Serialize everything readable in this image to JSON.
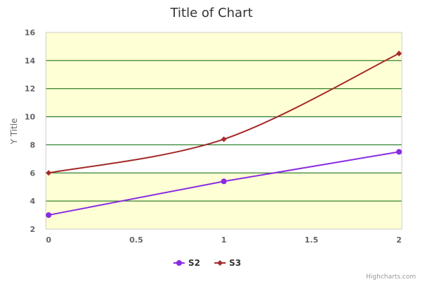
{
  "chart_data": {
    "type": "line",
    "title": "Title of Chart",
    "xlabel": "",
    "ylabel": "Y Title",
    "x": [
      0,
      1,
      2
    ],
    "x_ticks": [
      "0",
      "0.5",
      "1",
      "1.5",
      "2"
    ],
    "x_tick_values": [
      0,
      0.5,
      1,
      1.5,
      2
    ],
    "xlim": [
      0,
      2
    ],
    "ylim": [
      2,
      16
    ],
    "y_ticks": [
      2,
      4,
      6,
      8,
      10,
      12,
      14,
      16
    ],
    "series": [
      {
        "name": "S2",
        "values": [
          3,
          5.4,
          7.5
        ],
        "color": "#8a2be2",
        "marker": "circle",
        "smooth": false
      },
      {
        "name": "S3",
        "values": [
          6,
          8.4,
          14.5
        ],
        "color": "#a52a2a",
        "marker": "diamond",
        "smooth": true
      }
    ],
    "grid": true,
    "grid_color": "#006400",
    "plot_bands": [
      {
        "from": 2,
        "to": 6,
        "color": "#ffffd5"
      },
      {
        "from": 6,
        "to": 10,
        "color": "#ffffff"
      },
      {
        "from": 10,
        "to": 14,
        "color": "#ffffd5"
      },
      {
        "from": 14,
        "to": 16,
        "color": "#ffffd5"
      }
    ],
    "legend_position": "bottom-center",
    "credits": "Highcharts.com"
  }
}
